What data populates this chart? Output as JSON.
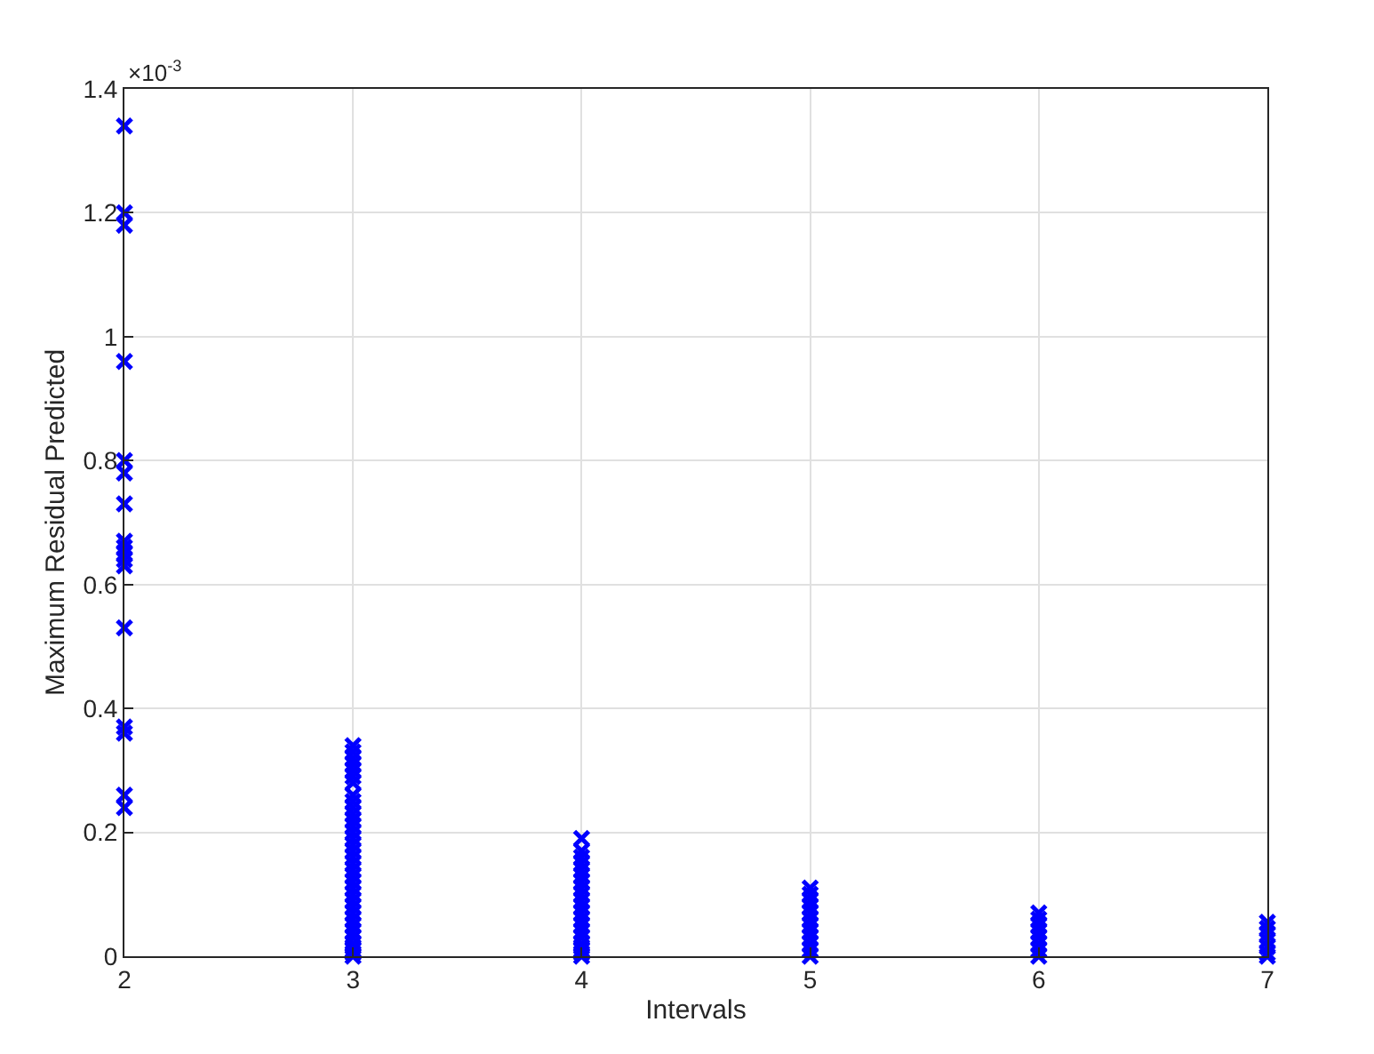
{
  "chart_data": {
    "type": "scatter",
    "xlabel": "Intervals",
    "ylabel": "Maximum Residual Predicted",
    "annotations": [
      "×10$^{-3}$"
    ],
    "series": [
      {
        "color": "#0000ff",
        "x": [
          2,
          2,
          2,
          2,
          2,
          2,
          2,
          2,
          2,
          2,
          2,
          2,
          2,
          2,
          2,
          2,
          2,
          3,
          3,
          3,
          3,
          3,
          3,
          3,
          3,
          3,
          3,
          3,
          3,
          3,
          3,
          3,
          3,
          3,
          3,
          3,
          3,
          3,
          3,
          3,
          3,
          3,
          3,
          3,
          3,
          3,
          3,
          3,
          3,
          3,
          3,
          3,
          3,
          4,
          4,
          4,
          4,
          4,
          4,
          4,
          4,
          4,
          4,
          4,
          4,
          4,
          4,
          4,
          4,
          4,
          4,
          4,
          4,
          4,
          5,
          5,
          5,
          5,
          5,
          5,
          5,
          5,
          5,
          5,
          5,
          5,
          6,
          6,
          6,
          6,
          6,
          6,
          6,
          6,
          7,
          7,
          7,
          7,
          7,
          7,
          7
        ],
        "values": [
          1.34,
          1.2,
          1.18,
          0.96,
          0.8,
          0.78,
          0.73,
          0.67,
          0.66,
          0.65,
          0.64,
          0.63,
          0.53,
          0.37,
          0.36,
          0.26,
          0.24,
          0.34,
          0.33,
          0.32,
          0.31,
          0.3,
          0.29,
          0.28,
          0.26,
          0.25,
          0.24,
          0.23,
          0.22,
          0.21,
          0.2,
          0.19,
          0.18,
          0.17,
          0.16,
          0.15,
          0.14,
          0.13,
          0.12,
          0.11,
          0.1,
          0.09,
          0.08,
          0.07,
          0.06,
          0.05,
          0.04,
          0.03,
          0.02,
          0.015,
          0.01,
          0.005,
          0.0,
          0.19,
          0.17,
          0.16,
          0.15,
          0.14,
          0.13,
          0.12,
          0.11,
          0.1,
          0.09,
          0.08,
          0.07,
          0.06,
          0.05,
          0.04,
          0.03,
          0.02,
          0.015,
          0.01,
          0.005,
          0.0,
          0.11,
          0.1,
          0.09,
          0.08,
          0.07,
          0.06,
          0.05,
          0.04,
          0.03,
          0.02,
          0.01,
          0.0,
          0.07,
          0.06,
          0.05,
          0.04,
          0.03,
          0.02,
          0.01,
          0.0,
          0.055,
          0.045,
          0.035,
          0.025,
          0.015,
          0.005,
          0.0
        ]
      }
    ],
    "xlim": [
      2,
      7
    ],
    "xticks": [
      2,
      3,
      4,
      5,
      6,
      7
    ],
    "ylim": [
      0,
      1.4
    ],
    "yticks": [
      0,
      0.2,
      0.4,
      0.6,
      0.8,
      1,
      1.2,
      1.4
    ],
    "grid": true,
    "marker": "cross"
  }
}
